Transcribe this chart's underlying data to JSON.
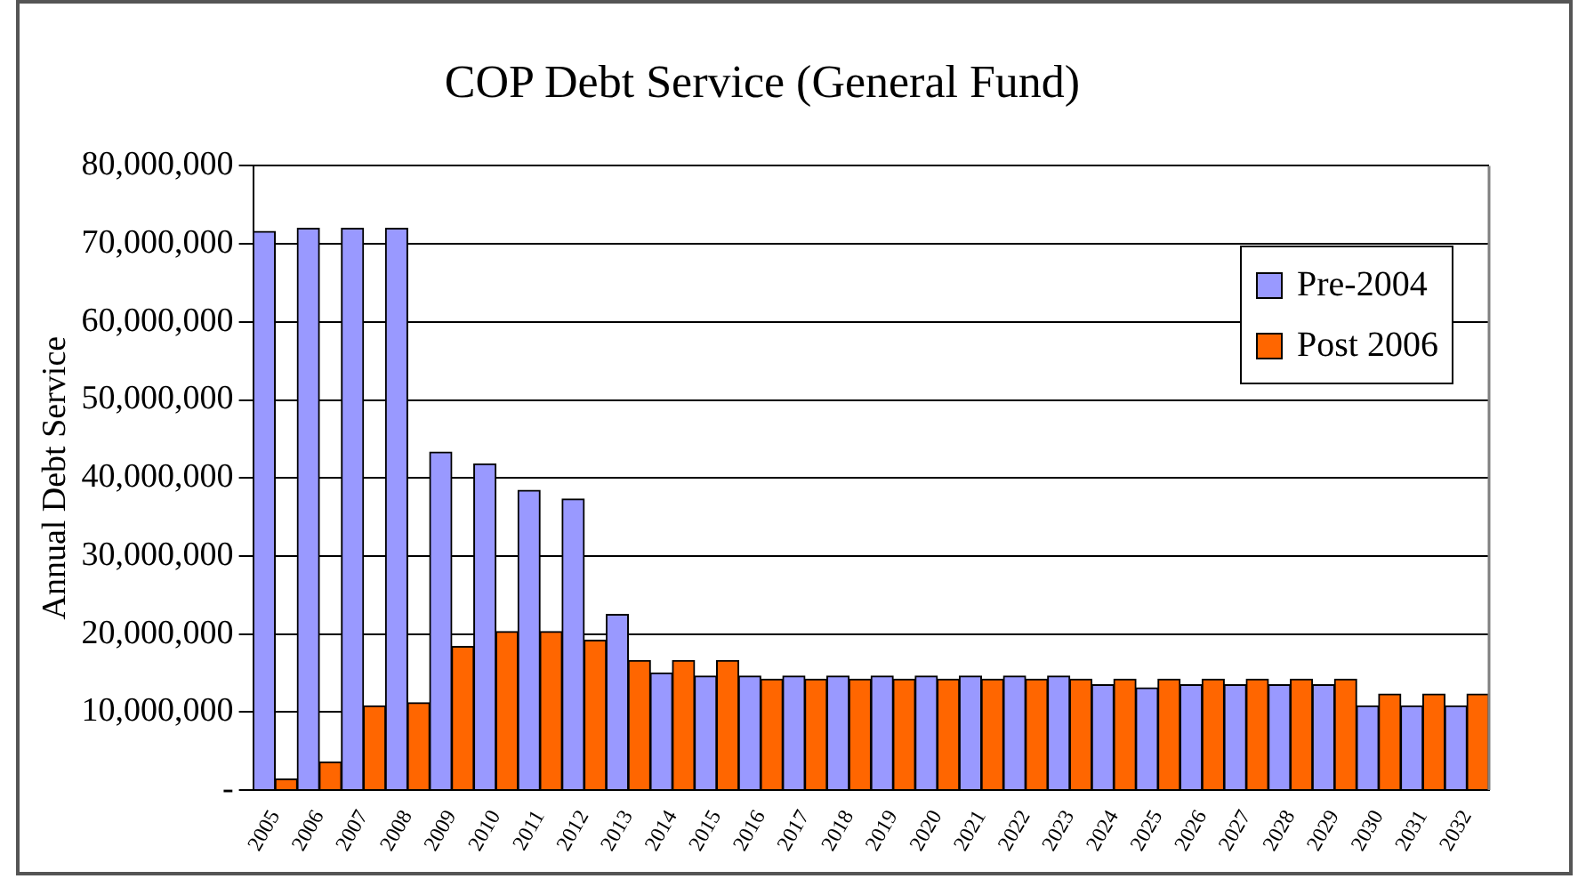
{
  "chart_data": {
    "type": "bar",
    "title": "COP Debt Service (General Fund)",
    "ylabel": "Annual Debt Service",
    "categories": [
      "2005",
      "2006",
      "2007",
      "2008",
      "2009",
      "2010",
      "2011",
      "2012",
      "2013",
      "2014",
      "2015",
      "2016",
      "2017",
      "2018",
      "2019",
      "2020",
      "2021",
      "2022",
      "2023",
      "2024",
      "2025",
      "2026",
      "2027",
      "2028",
      "2029",
      "2030",
      "2031",
      "2032"
    ],
    "series": [
      {
        "name": "Pre-2004",
        "color": "#9999ff",
        "values": [
          71600000.0,
          72000000.0,
          72000000.0,
          72000000.0,
          43300000.0,
          41800000.0,
          38400000.0,
          37300000.0,
          22500000.0,
          15000000.0,
          14600000.0,
          14600000.0,
          14600000.0,
          14600000.0,
          14600000.0,
          14600000.0,
          14600000.0,
          14600000.0,
          14600000.0,
          13500000.0,
          13100000.0,
          13500000.0,
          13500000.0,
          13500000.0,
          13500000.0,
          10800000.0,
          10800000.0,
          10800000.0
        ]
      },
      {
        "name": "Post 2006",
        "color": "#ff6600",
        "values": [
          1400000.0,
          3600000.0,
          10800000.0,
          11200000.0,
          18400000.0,
          20300000.0,
          20300000.0,
          19200000.0,
          16600000.0,
          16600000.0,
          16600000.0,
          14200000.0,
          14200000.0,
          14200000.0,
          14200000.0,
          14200000.0,
          14200000.0,
          14200000.0,
          14200000.0,
          14200000.0,
          14200000.0,
          14200000.0,
          14200000.0,
          14200000.0,
          14200000.0,
          12300000.0,
          12300000.0,
          12300000.0
        ]
      }
    ],
    "ylim": [
      0,
      80000000
    ],
    "yticks": [
      {
        "value": 0,
        "label": "-"
      },
      {
        "value": 10000000,
        "label": "10,000,000"
      },
      {
        "value": 20000000,
        "label": "20,000,000"
      },
      {
        "value": 30000000,
        "label": "30,000,000"
      },
      {
        "value": 40000000,
        "label": "40,000,000"
      },
      {
        "value": 50000000,
        "label": "50,000,000"
      },
      {
        "value": 60000000,
        "label": "60,000,000"
      },
      {
        "value": 70000000,
        "label": "70,000,000"
      },
      {
        "value": 80000000,
        "label": "80,000,000"
      }
    ],
    "grid": "y",
    "legend": "top right"
  }
}
